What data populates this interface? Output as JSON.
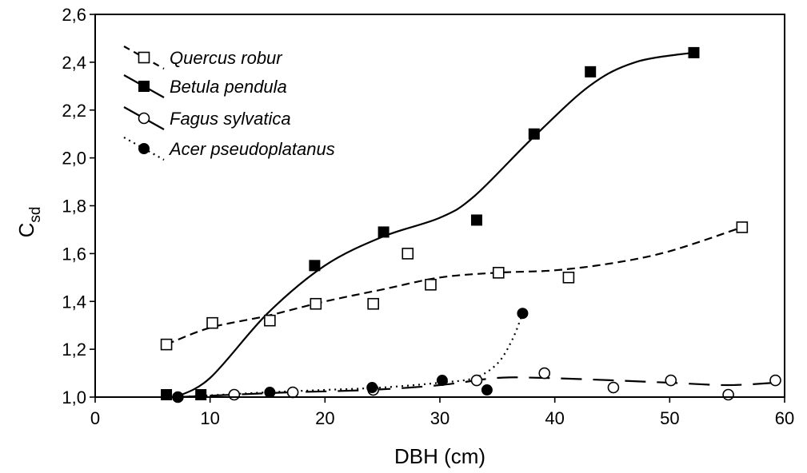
{
  "chart_data": {
    "type": "scatter",
    "xlabel": "DBH (cm)",
    "ylabel_main": "C",
    "ylabel_sub": "sd",
    "xlim": [
      0,
      60
    ],
    "ylim": [
      1.0,
      2.6
    ],
    "xticks": [
      {
        "value": 0,
        "label": "0"
      },
      {
        "value": 10,
        "label": "10"
      },
      {
        "value": 20,
        "label": "20"
      },
      {
        "value": 30,
        "label": "30"
      },
      {
        "value": 40,
        "label": "40"
      },
      {
        "value": 50,
        "label": "50"
      },
      {
        "value": 60,
        "label": "60"
      }
    ],
    "yticks": [
      {
        "value": 1.0,
        "label": "1,0"
      },
      {
        "value": 1.2,
        "label": "1,2"
      },
      {
        "value": 1.4,
        "label": "1,4"
      },
      {
        "value": 1.6,
        "label": "1,6"
      },
      {
        "value": 1.8,
        "label": "1,8"
      },
      {
        "value": 2.0,
        "label": "2,0"
      },
      {
        "value": 2.2,
        "label": "2,2"
      },
      {
        "value": 2.4,
        "label": "2,4"
      },
      {
        "value": 2.6,
        "label": "2,6"
      }
    ],
    "grid": false,
    "legend_position": "top-left",
    "series": [
      {
        "name": "Quercus robur",
        "marker": "square-open",
        "line_style": "dashed",
        "points": [
          [
            6.2,
            1.22
          ],
          [
            10.2,
            1.31
          ],
          [
            15.2,
            1.32
          ],
          [
            19.2,
            1.39
          ],
          [
            24.2,
            1.39
          ],
          [
            27.2,
            1.6
          ],
          [
            29.2,
            1.47
          ],
          [
            35.1,
            1.52
          ],
          [
            41.2,
            1.5
          ],
          [
            56.3,
            1.71
          ]
        ],
        "curve": [
          [
            6.2,
            1.22
          ],
          [
            10,
            1.29
          ],
          [
            15,
            1.34
          ],
          [
            20,
            1.4
          ],
          [
            25,
            1.45
          ],
          [
            30,
            1.5
          ],
          [
            35,
            1.52
          ],
          [
            40,
            1.53
          ],
          [
            45,
            1.56
          ],
          [
            50,
            1.61
          ],
          [
            56.3,
            1.71
          ]
        ]
      },
      {
        "name": "Betula pendula",
        "marker": "square-filled",
        "line_style": "solid",
        "points": [
          [
            6.2,
            1.01
          ],
          [
            9.2,
            1.01
          ],
          [
            19.1,
            1.55
          ],
          [
            25.1,
            1.69
          ],
          [
            33.2,
            1.74
          ],
          [
            38.2,
            2.1
          ],
          [
            43.1,
            2.36
          ],
          [
            52.1,
            2.44
          ]
        ],
        "curve": [
          [
            7,
            1.0
          ],
          [
            10,
            1.08
          ],
          [
            15,
            1.35
          ],
          [
            20,
            1.55
          ],
          [
            25,
            1.67
          ],
          [
            30,
            1.75
          ],
          [
            33,
            1.84
          ],
          [
            38,
            2.08
          ],
          [
            43,
            2.3
          ],
          [
            47,
            2.4
          ],
          [
            52,
            2.44
          ]
        ]
      },
      {
        "name": "Fagus sylvatica",
        "marker": "circle-open",
        "line_style": "long-dash",
        "points": [
          [
            7.2,
            1.0
          ],
          [
            12.1,
            1.01
          ],
          [
            17.2,
            1.02
          ],
          [
            24.2,
            1.03
          ],
          [
            33.2,
            1.07
          ],
          [
            39.1,
            1.1
          ],
          [
            45.1,
            1.04
          ],
          [
            50.1,
            1.07
          ],
          [
            55.1,
            1.01
          ],
          [
            59.2,
            1.07
          ]
        ],
        "curve": [
          [
            7.2,
            1.0
          ],
          [
            12,
            1.01
          ],
          [
            17,
            1.02
          ],
          [
            24,
            1.03
          ],
          [
            30,
            1.05
          ],
          [
            35,
            1.08
          ],
          [
            39,
            1.08
          ],
          [
            45,
            1.07
          ],
          [
            50,
            1.06
          ],
          [
            55,
            1.05
          ],
          [
            59.2,
            1.06
          ]
        ]
      },
      {
        "name": "Acer pseudoplatanus",
        "marker": "circle-filled",
        "line_style": "dotted",
        "points": [
          [
            7.2,
            1.0
          ],
          [
            15.2,
            1.02
          ],
          [
            24.1,
            1.04
          ],
          [
            30.2,
            1.07
          ],
          [
            34.1,
            1.03
          ],
          [
            37.2,
            1.35
          ]
        ],
        "curve": [
          [
            7.2,
            1.0
          ],
          [
            15,
            1.02
          ],
          [
            20,
            1.03
          ],
          [
            25,
            1.04
          ],
          [
            30,
            1.06
          ],
          [
            33,
            1.08
          ],
          [
            35,
            1.14
          ],
          [
            36.3,
            1.24
          ],
          [
            37.2,
            1.35
          ]
        ]
      }
    ]
  }
}
